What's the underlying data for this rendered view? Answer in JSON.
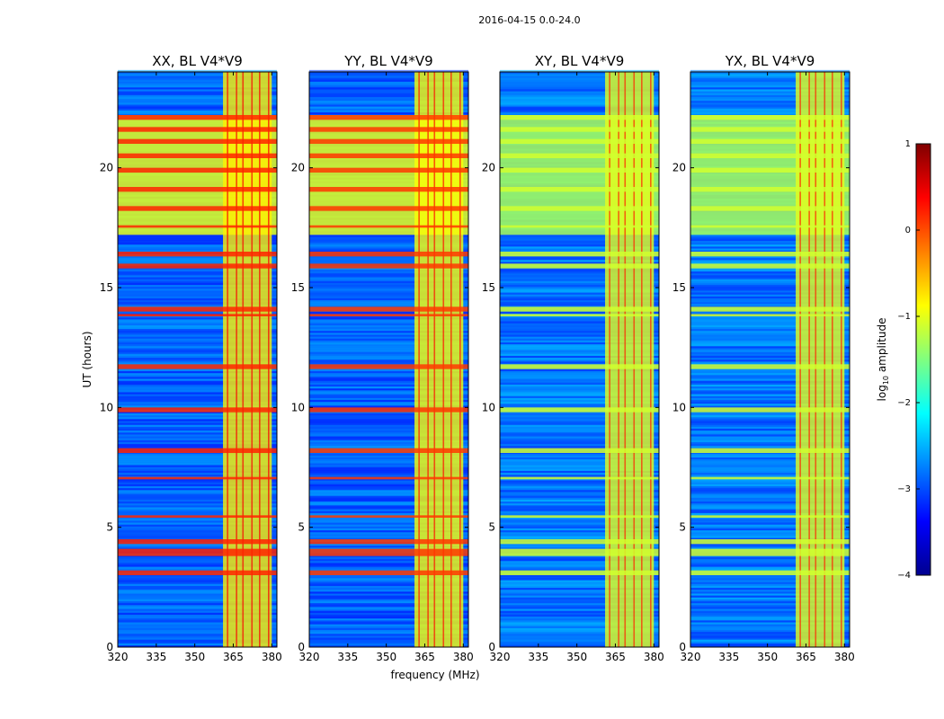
{
  "figure": {
    "suptitle": "2016-04-15 0.0-24.0"
  },
  "chart_data": {
    "type": "heatmap",
    "title": "2016-04-15 0.0-24.0",
    "xlabel": "frequency (MHz)",
    "ylabel": "UT (hours)",
    "xlim": [
      320,
      382
    ],
    "ylim": [
      0,
      24
    ],
    "xticks": [
      320,
      335,
      350,
      365,
      380
    ],
    "yticks": [
      0,
      5,
      10,
      15,
      20
    ],
    "colormap": "jet",
    "colorbar": {
      "label": "log10 amplitude",
      "min": -4,
      "max": 1,
      "ticks": [
        1,
        0,
        -1,
        -2,
        -3,
        -4
      ],
      "tick_labels": [
        "1",
        "0",
        "−1",
        "−2",
        "−3",
        "−4"
      ]
    },
    "panels": [
      {
        "name": "XX, BL V4*V9",
        "background_level": -2.9,
        "rfi_band_level": -0.8,
        "hot_band_level": 0.2
      },
      {
        "name": "YY, BL V4*V9",
        "background_level": -2.9,
        "rfi_band_level": -0.9,
        "hot_band_level": 0.1
      },
      {
        "name": "XY, BL V4*V9",
        "background_level": -2.8,
        "rfi_band_level": -1.0,
        "hot_band_level": -1.1
      },
      {
        "name": "YX, BL V4*V9",
        "background_level": -2.8,
        "rfi_band_level": -1.0,
        "hot_band_level": -1.1
      }
    ],
    "rfi_frequency_range_mhz": [
      361,
      380
    ],
    "strong_rfi_time_bands_ut": [
      [
        22.0,
        22.2
      ],
      [
        21.5,
        21.7
      ],
      [
        21.0,
        21.2
      ],
      [
        20.4,
        20.6
      ],
      [
        19.8,
        20.0
      ],
      [
        19.0,
        19.2
      ],
      [
        18.2,
        18.4
      ],
      [
        17.5,
        17.6
      ],
      [
        16.3,
        16.5
      ],
      [
        15.8,
        16.0
      ],
      [
        14.0,
        14.2
      ],
      [
        13.8,
        13.9
      ],
      [
        11.6,
        11.8
      ],
      [
        9.8,
        10.0
      ],
      [
        8.1,
        8.3
      ],
      [
        7.0,
        7.1
      ],
      [
        5.4,
        5.5
      ],
      [
        4.3,
        4.5
      ],
      [
        3.8,
        4.1
      ],
      [
        3.0,
        3.2
      ]
    ]
  }
}
